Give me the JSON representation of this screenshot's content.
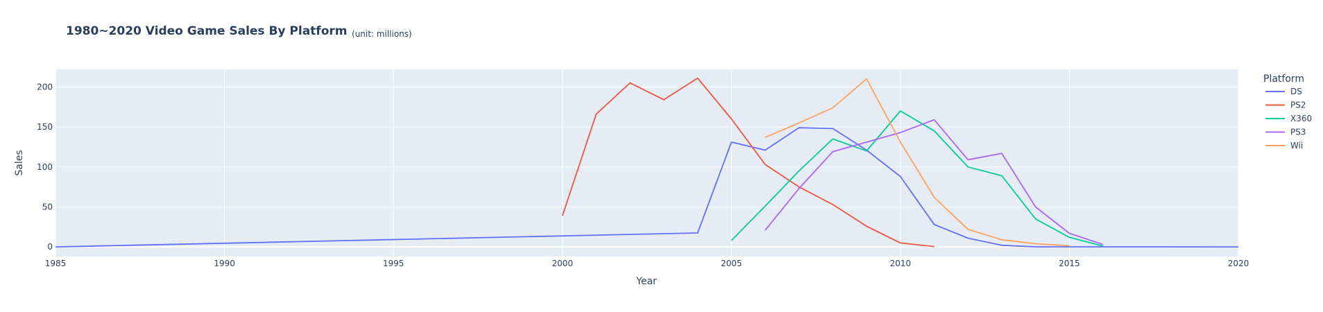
{
  "chart_data": {
    "type": "line",
    "title": "1980~2020 Video Game Sales By Platform",
    "subtitle": "(unit: millions)",
    "xlabel": "Year",
    "ylabel": "Sales",
    "xlim": [
      1985,
      2020
    ],
    "ylim": [
      -12,
      222
    ],
    "xticks": [
      1985,
      1990,
      1995,
      2000,
      2005,
      2010,
      2015,
      2020
    ],
    "yticks": [
      0,
      50,
      100,
      150,
      200
    ],
    "grid": true,
    "legend_title": "Platform",
    "legend_position": "right",
    "colors": {
      "plot_bg": "#e5ecf6",
      "grid": "#ffffff",
      "text": "#2a3f5f"
    },
    "series": [
      {
        "name": "DS",
        "color": "#636efa",
        "x": [
          1985,
          2004,
          2005,
          2006,
          2007,
          2008,
          2009,
          2010,
          2011,
          2012,
          2013,
          2014,
          2015,
          2016,
          2020
        ],
        "y": [
          0.02,
          17.5,
          131,
          121,
          149,
          148,
          121,
          88,
          28,
          11,
          2,
          0.1,
          0.1,
          0.1,
          0.02
        ]
      },
      {
        "name": "PS2",
        "color": "#ef553b",
        "x": [
          2000,
          2001,
          2002,
          2003,
          2004,
          2005,
          2006,
          2007,
          2008,
          2009,
          2010,
          2011
        ],
        "y": [
          39,
          166,
          205,
          184,
          211,
          160,
          103,
          75,
          53,
          26,
          5,
          0.5
        ]
      },
      {
        "name": "X360",
        "color": "#00cc96",
        "x": [
          2005,
          2006,
          2007,
          2008,
          2009,
          2010,
          2011,
          2012,
          2013,
          2014,
          2015,
          2016
        ],
        "y": [
          8,
          51,
          95,
          135,
          120,
          170,
          145,
          100,
          89,
          35,
          12,
          1
        ]
      },
      {
        "name": "PS3",
        "color": "#ab63fa",
        "x": [
          2006,
          2007,
          2008,
          2009,
          2010,
          2011,
          2012,
          2013,
          2014,
          2015,
          2016
        ],
        "y": [
          21,
          73,
          119,
          131,
          143,
          159,
          109,
          117,
          50,
          17,
          3
        ]
      },
      {
        "name": "Wii",
        "color": "#ffa15a",
        "x": [
          2006,
          2007,
          2008,
          2009,
          2010,
          2011,
          2012,
          2013,
          2014,
          2015
        ],
        "y": [
          137,
          155,
          174,
          210,
          131,
          62,
          22,
          9,
          4,
          1.5
        ]
      }
    ]
  }
}
